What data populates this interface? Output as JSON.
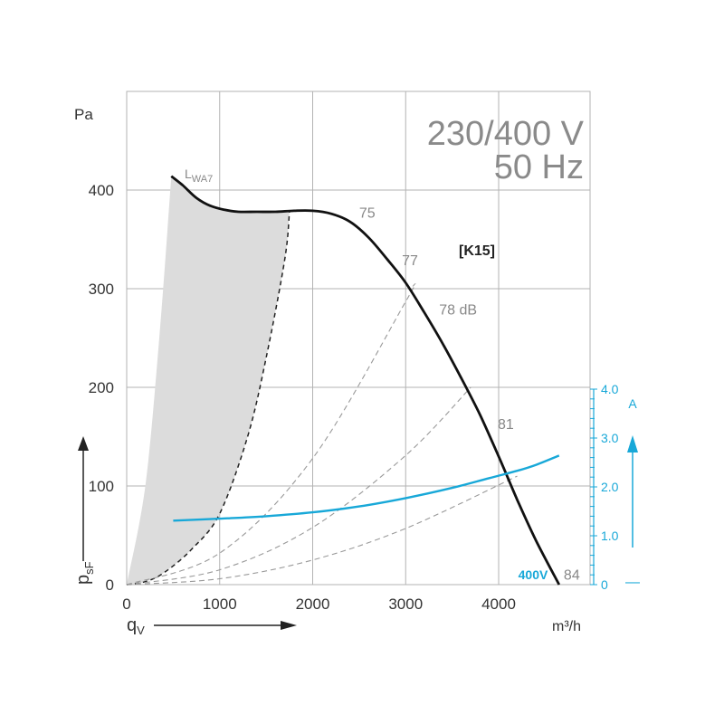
{
  "chart_data": {
    "type": "line",
    "title": "230/400 V",
    "subtitle": "50 Hz",
    "model": "[K15]",
    "voltage_label": "400V",
    "x_unit": "m³/h",
    "x_symbol": "q",
    "x_symbol_sub": "V",
    "y_unit": "Pa",
    "y_symbol": "p",
    "y_symbol_sub": "sF",
    "y2_unit": "A",
    "y2_marker": "—",
    "sound_label_main": "L",
    "sound_label_sub": "WA7",
    "xlim": [
      0,
      5000
    ],
    "ylim": [
      0,
      450
    ],
    "y2lim": [
      0,
      4.0
    ],
    "x_ticks": [
      "0",
      "1000",
      "2000",
      "3000",
      "4000"
    ],
    "y_ticks": [
      "0",
      "100",
      "200",
      "300",
      "400"
    ],
    "y2_ticks": [
      "0",
      "1.0",
      "2.0",
      "3.0",
      "4.0"
    ],
    "grid": true,
    "colors": {
      "pressure": "#111111",
      "current": "#18a8d8",
      "grid": "#b3b3b3",
      "shade": "#dcdcdc",
      "text": "#333333",
      "title": "#8a8a8a",
      "annotation": "#888888",
      "dashed": "#999999"
    },
    "pressure_curve": {
      "x": [
        480,
        600,
        750,
        900,
        1050,
        1200,
        1400,
        1600,
        1800,
        2000,
        2200,
        2400,
        2600,
        2800,
        3000,
        3200,
        3400,
        3600,
        3800,
        4000,
        4200,
        4400,
        4650
      ],
      "y": [
        414,
        405,
        392,
        384,
        380,
        378,
        378,
        378,
        379,
        379,
        376,
        368,
        352,
        330,
        306,
        276,
        244,
        209,
        172,
        130,
        86,
        45,
        0
      ]
    },
    "current_curve": {
      "x": [
        500,
        1000,
        1500,
        2000,
        2500,
        3000,
        3500,
        3900,
        4200,
        4400,
        4650
      ],
      "y": [
        1.31,
        1.35,
        1.4,
        1.48,
        1.6,
        1.77,
        1.98,
        2.18,
        2.33,
        2.45,
        2.64
      ]
    },
    "shaded_area": {
      "upper": {
        "x": [
          0,
          200,
          350,
          480
        ],
        "y": [
          0,
          100,
          250,
          414
        ]
      },
      "lower": {
        "x": [
          0,
          200,
          400,
          700,
          1000,
          1300,
          1500,
          1700,
          1750
        ],
        "y": [
          0,
          3,
          12,
          36,
          72,
          150,
          230,
          330,
          378
        ]
      }
    },
    "system_curves": [
      {
        "x": [
          0,
          1000,
          2000,
          3000,
          3080
        ],
        "y": [
          0,
          32,
          128,
          287,
          303
        ]
      },
      {
        "x": [
          0,
          1000,
          2000,
          3000,
          3700
        ],
        "y": [
          0,
          15,
          58,
          131,
          200
        ]
      },
      {
        "x": [
          0,
          1000,
          2000,
          3000,
          4200
        ],
        "y": [
          0,
          6,
          25,
          57,
          110
        ]
      }
    ],
    "annotations": [
      {
        "text": "75",
        "x": 2500,
        "y": 372
      },
      {
        "text": "77",
        "x": 2960,
        "y": 324
      },
      {
        "text": "78 dB",
        "x": 3360,
        "y": 274
      },
      {
        "text": "81",
        "x": 3990,
        "y": 158
      },
      {
        "text": "84",
        "x": 4700,
        "y": 5
      }
    ]
  }
}
